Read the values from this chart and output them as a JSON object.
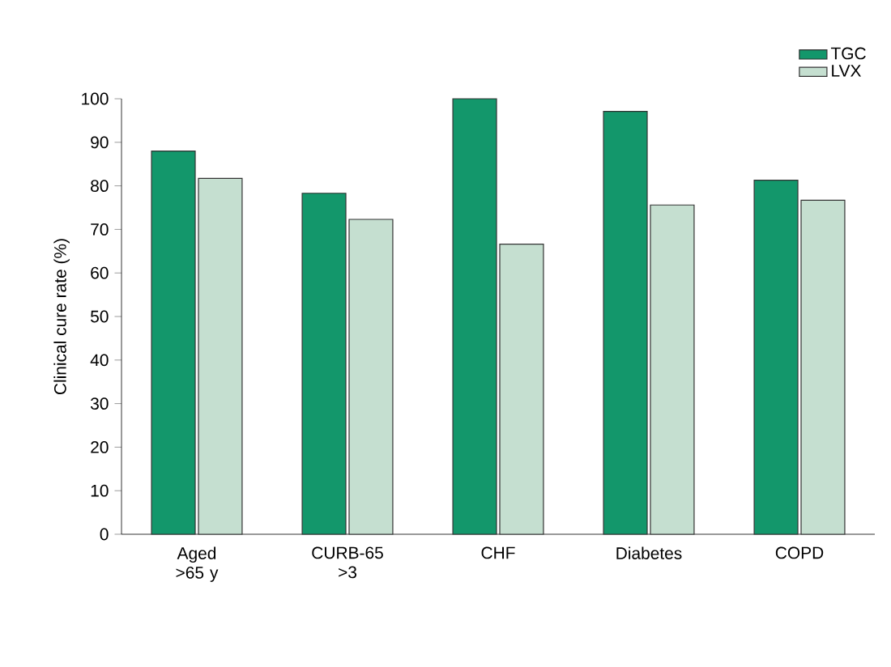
{
  "chart_data": {
    "type": "bar",
    "ylabel": "Clinical cure rate (%)",
    "categories": [
      "Aged >65 y",
      "CURB-65 >3",
      "CHF",
      "Diabetes",
      "COPD"
    ],
    "series": [
      {
        "name": "TGC",
        "color": "#13976b",
        "values": [
          88,
          78.3,
          100,
          97.1,
          81.3
        ]
      },
      {
        "name": "LVX",
        "color": "#c5dfd0",
        "values": [
          81.7,
          72.3,
          66.6,
          75.6,
          76.7
        ]
      }
    ],
    "ylim": [
      0,
      100
    ],
    "yticks": [
      0,
      10,
      20,
      30,
      40,
      50,
      60,
      70,
      80,
      90,
      100
    ],
    "legend": "top right"
  }
}
